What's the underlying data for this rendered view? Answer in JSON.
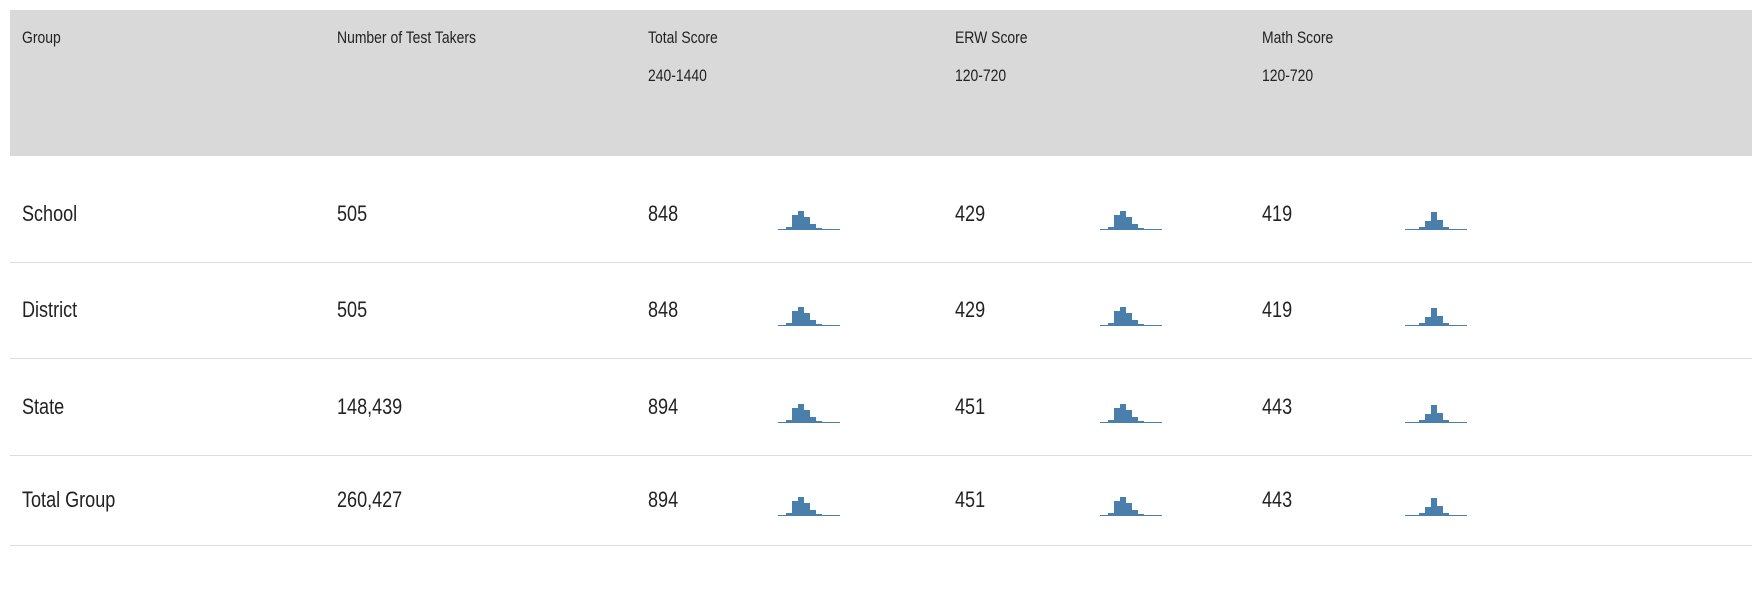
{
  "table": {
    "columns": [
      {
        "title": "Group"
      },
      {
        "title": "Number of Test Takers"
      },
      {
        "title": "Total Score",
        "range": "240-1440"
      },
      {
        "title": "ERW Score",
        "range": "120-720"
      },
      {
        "title": "Math Score",
        "range": "120-720"
      }
    ],
    "rows": [
      [
        "School",
        "505",
        "848",
        "429",
        "419"
      ],
      [
        "District",
        "505",
        "848",
        "429",
        "419"
      ],
      [
        "State",
        "148,439",
        "894",
        "451",
        "443"
      ],
      [
        "Total Group",
        "260,427",
        "894",
        "451",
        "443"
      ]
    ]
  }
}
